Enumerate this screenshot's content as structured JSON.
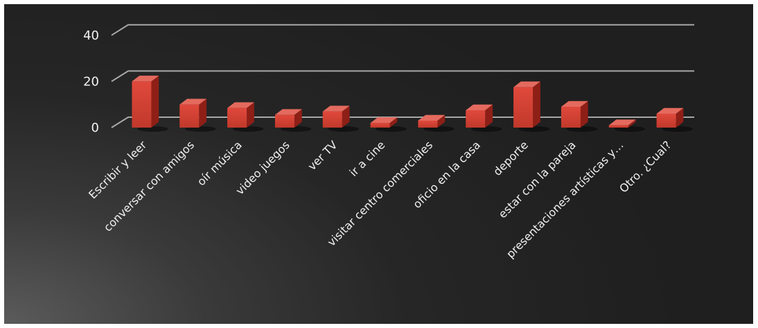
{
  "chart_data": {
    "type": "bar",
    "categories": [
      "Escribir y leer",
      "conversar con amigos",
      "oír música",
      "video juegos",
      "ver TV",
      "ir a cine",
      "visitar centro comerciales",
      "oficio en la casa",
      "deporte",
      "estar con la pareja",
      "presentaciones artísticas y…",
      "Otro. ¿Cual?"
    ],
    "values": [
      20,
      10,
      8.5,
      5.5,
      7,
      2,
      3,
      7.5,
      17.5,
      9,
      1,
      6
    ],
    "yticks": [
      "0",
      "20",
      "40"
    ],
    "ylim": [
      0,
      40
    ],
    "grid": true,
    "legend": false,
    "colors": {
      "bar_front": "#c0392b",
      "bar_top": "#e46a5e",
      "bar_side": "#8e1f17",
      "gridline": "#bfbfbf",
      "text": "#f2f2f2"
    }
  }
}
